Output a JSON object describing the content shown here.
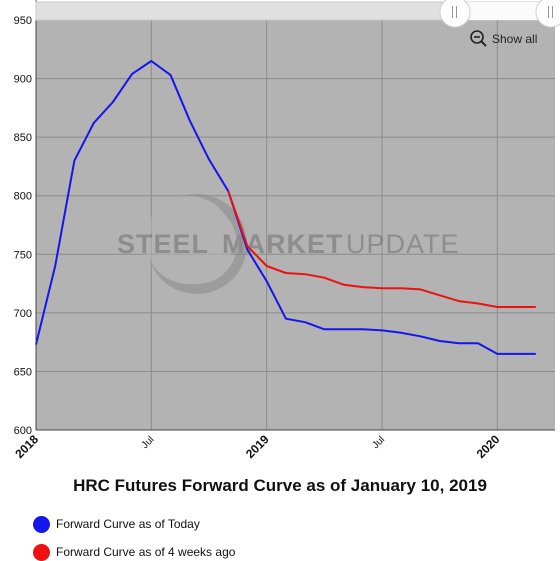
{
  "chart_data": {
    "type": "line",
    "title": "HRC Futures Forward Curve as of January 10, 2019",
    "watermark": "STEELMARKETUPDATE",
    "ylim": [
      600,
      950
    ],
    "y_ticks": [
      "600",
      "650",
      "700",
      "750",
      "800",
      "850",
      "900",
      "950"
    ],
    "x_ticks": [
      {
        "label": "2018",
        "bold": true
      },
      {
        "label": "Jul",
        "bold": false
      },
      {
        "label": "2019",
        "bold": true
      },
      {
        "label": "Jul",
        "bold": false
      },
      {
        "label": "2020",
        "bold": true
      }
    ],
    "x_range": [
      "2018-01",
      "2020-04"
    ],
    "grid": true,
    "legend_position": "bottom-left",
    "series": [
      {
        "name": "Forward Curve as of Today",
        "color": "#1515ee",
        "x": [
          "2018-01",
          "2018-02",
          "2018-03",
          "2018-04",
          "2018-05",
          "2018-06",
          "2018-07",
          "2018-08",
          "2018-09",
          "2018-10",
          "2018-11",
          "2018-12",
          "2019-01",
          "2019-02",
          "2019-03",
          "2019-04",
          "2019-05",
          "2019-06",
          "2019-07",
          "2019-08",
          "2019-09",
          "2019-10",
          "2019-11",
          "2019-12",
          "2020-01",
          "2020-02",
          "2020-03"
        ],
        "values": [
          673,
          740,
          830,
          862,
          880,
          904,
          915,
          903,
          864,
          831,
          804,
          754,
          727,
          695,
          692,
          686,
          686,
          686,
          685,
          683,
          680,
          676,
          674,
          674,
          665,
          665,
          665
        ]
      },
      {
        "name": "Forward Curve as of 4 weeks ago",
        "color": "#ee1111",
        "x": [
          "2018-11",
          "2018-12",
          "2019-01",
          "2019-02",
          "2019-03",
          "2019-04",
          "2019-05",
          "2019-06",
          "2019-07",
          "2019-08",
          "2019-09",
          "2019-10",
          "2019-11",
          "2019-12",
          "2020-01",
          "2020-02",
          "2020-03"
        ],
        "values": [
          804,
          757,
          740,
          734,
          733,
          730,
          724,
          722,
          721,
          721,
          720,
          715,
          710,
          708,
          705,
          705,
          705
        ]
      }
    ]
  },
  "controls": {
    "show_all": "Show all",
    "zoom_icon": "zoom-out-icon",
    "scroll_handle_icon": "scrollbar-grip-icon"
  }
}
